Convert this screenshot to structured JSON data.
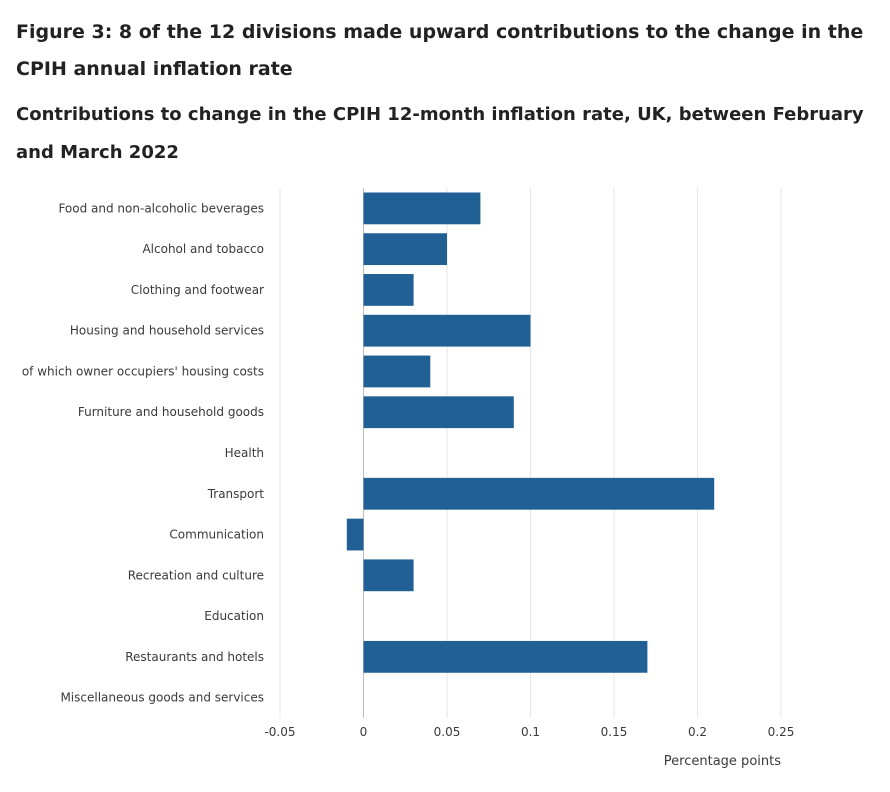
{
  "figure": {
    "title": "Figure 3: 8 of the 12 divisions made upward contributions to the change in the CPIH annual inflation rate",
    "subtitle": "Contributions to change in the CPIH 12-month inflation rate, UK, between February and March 2022"
  },
  "colors": {
    "bar": "#206095",
    "grid": "#e6e6e6",
    "axis": "#bdbdbd"
  },
  "chart_data": {
    "type": "bar",
    "orientation": "horizontal",
    "categories": [
      "Food and non-alcoholic beverages",
      "Alcohol and tobacco",
      "Clothing and footwear",
      "Housing and household services",
      "of which owner occupiers' housing costs",
      "Furniture and household goods",
      "Health",
      "Transport",
      "Communication",
      "Recreation and culture",
      "Education",
      "Restaurants and hotels",
      "Miscellaneous goods and services"
    ],
    "values": [
      0.07,
      0.05,
      0.03,
      0.1,
      0.04,
      0.09,
      0,
      0.21,
      -0.01,
      0.03,
      0,
      0.17,
      0
    ],
    "xlim": [
      -0.05,
      0.25
    ],
    "xticks": [
      -0.05,
      0,
      0.05,
      0.1,
      0.15,
      0.2,
      0.25
    ],
    "xtick_labels": [
      "-0.05",
      "0",
      "0.05",
      "0.1",
      "0.15",
      "0.2",
      "0.25"
    ],
    "xlabel": "Percentage points",
    "grid": true
  }
}
